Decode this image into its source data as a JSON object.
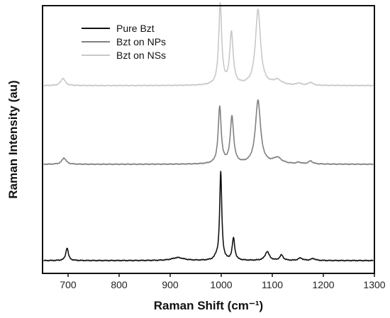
{
  "chart_data": {
    "type": "line",
    "xlabel": "Raman Shift (cm⁻¹)",
    "ylabel": "Raman Intensity (au)",
    "xlim": [
      650,
      1300
    ],
    "x_ticks": [
      "700",
      "800",
      "900",
      "1000",
      "1100",
      "1200",
      "1300"
    ],
    "y_ticks": "none",
    "grid": false,
    "legend_position": "top-left",
    "series": [
      {
        "name": "Pure Bzt",
        "color": "#111111",
        "offset": 0,
        "baseline": 0.3,
        "peaks": [
          {
            "center": 698,
            "height": 2.6,
            "width": 3
          },
          {
            "center": 915,
            "height": 0.6,
            "width": 14
          },
          {
            "center": 990,
            "height": 0.5,
            "width": 4
          },
          {
            "center": 999,
            "height": 18.0,
            "width": 2.5
          },
          {
            "center": 1024,
            "height": 4.5,
            "width": 3
          },
          {
            "center": 1090,
            "height": 1.8,
            "width": 5
          },
          {
            "center": 1118,
            "height": 1.1,
            "width": 4
          },
          {
            "center": 1155,
            "height": 0.5,
            "width": 5
          },
          {
            "center": 1180,
            "height": 0.4,
            "width": 5
          }
        ]
      },
      {
        "name": "Bzt on NPs",
        "color": "#808080",
        "offset": 19.6,
        "baseline": 0.4,
        "peaks": [
          {
            "center": 692,
            "height": 1.3,
            "width": 5
          },
          {
            "center": 997,
            "height": 11.6,
            "width": 3.5
          },
          {
            "center": 1021,
            "height": 9.5,
            "width": 4
          },
          {
            "center": 1072,
            "height": 13.0,
            "width": 6
          },
          {
            "center": 1110,
            "height": 1.2,
            "width": 10
          },
          {
            "center": 1152,
            "height": 0.3,
            "width": 5
          },
          {
            "center": 1175,
            "height": 0.6,
            "width": 5
          }
        ]
      },
      {
        "name": "Bzt on NSs",
        "color": "#c8c8c8",
        "offset": 35.8,
        "baseline": 0.3,
        "peaks": [
          {
            "center": 690,
            "height": 1.5,
            "width": 5
          },
          {
            "center": 998,
            "height": 16.5,
            "width": 3.5
          },
          {
            "center": 1020,
            "height": 10.6,
            "width": 4
          },
          {
            "center": 1072,
            "height": 15.4,
            "width": 6
          },
          {
            "center": 1110,
            "height": 1.0,
            "width": 10
          },
          {
            "center": 1152,
            "height": 0.4,
            "width": 5
          },
          {
            "center": 1175,
            "height": 0.6,
            "width": 5
          }
        ]
      }
    ]
  }
}
